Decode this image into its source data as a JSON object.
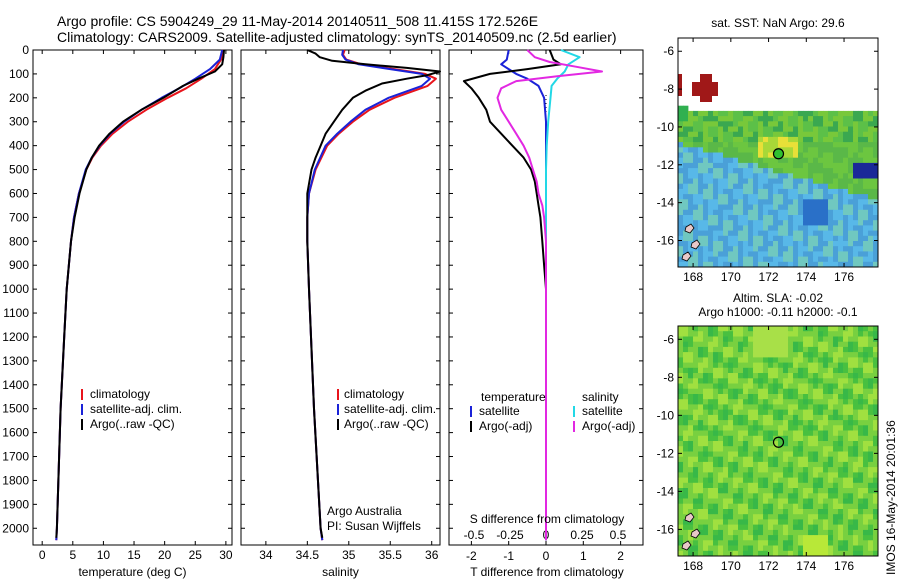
{
  "header": {
    "line1": "Argo profile: CS 5904249_29 11-May-2014 20140511_508 11.415S 172.526E",
    "line2": "Climatology: CARS2009. Satellite-adjusted climatology: synTS_20140509.nc (2.5d earlier)"
  },
  "side_stamp": "IMOS 16-May-2014 20:01:36",
  "colors": {
    "climatology": "#e8141c",
    "satellite_adj": "#1a22d8",
    "argo": "#000000",
    "sal_satellite": "#22d8e6",
    "sal_argo": "#e228e2"
  },
  "chart_data": [
    {
      "id": "temperature",
      "type": "line",
      "xlabel": "temperature (deg C)",
      "ylabel": "",
      "xlim": [
        -1.5,
        31
      ],
      "xticks": [
        0,
        5,
        10,
        15,
        20,
        25,
        30
      ],
      "ylim": [
        2070,
        0
      ],
      "yticks": [
        0,
        100,
        200,
        300,
        400,
        500,
        600,
        700,
        800,
        900,
        1000,
        1100,
        1200,
        1300,
        1400,
        1500,
        1600,
        1700,
        1800,
        1900,
        2000
      ],
      "legend": [
        "climatology",
        "satellite-adj. clim.",
        "Argo(..raw -QC)"
      ],
      "series": [
        {
          "name": "climatology",
          "color": "#e8141c",
          "depth": [
            0,
            40,
            80,
            120,
            160,
            200,
            250,
            300,
            350,
            400,
            450,
            500,
            600,
            700,
            800,
            1000,
            1200,
            1500,
            2000,
            2050
          ],
          "values": [
            29.6,
            29.2,
            28.2,
            26.0,
            23.5,
            20.5,
            17.0,
            14.0,
            11.5,
            9.6,
            8.2,
            7.2,
            6.0,
            5.2,
            4.7,
            4.0,
            3.6,
            3.0,
            2.4,
            2.3
          ]
        },
        {
          "name": "satellite-adj. clim.",
          "color": "#1a22d8",
          "depth": [
            0,
            40,
            80,
            120,
            160,
            200,
            250,
            300,
            350,
            400,
            450,
            500,
            600,
            700,
            800,
            1000,
            1200,
            1500,
            2000,
            2050
          ],
          "values": [
            29.4,
            29.0,
            27.4,
            25.0,
            22.4,
            19.5,
            16.2,
            13.4,
            11.1,
            9.4,
            8.1,
            7.1,
            6.0,
            5.2,
            4.7,
            4.0,
            3.6,
            3.0,
            2.4,
            2.3
          ]
        },
        {
          "name": "Argo(..raw -QC)",
          "color": "#000000",
          "depth": [
            0,
            30,
            60,
            90,
            120,
            150,
            200,
            250,
            300,
            350,
            400,
            450,
            500,
            600,
            700,
            800,
            1000,
            1200,
            1500,
            2000,
            2040
          ],
          "values": [
            29.7,
            29.6,
            29.4,
            28.2,
            25.5,
            23.0,
            19.8,
            16.2,
            13.2,
            11.0,
            9.3,
            8.1,
            7.2,
            6.1,
            5.3,
            4.7,
            4.0,
            3.6,
            3.0,
            2.4,
            2.3
          ]
        }
      ]
    },
    {
      "id": "salinity",
      "type": "line",
      "xlabel": "salinity",
      "ylabel": "",
      "xlim": [
        33.7,
        36.1
      ],
      "xticks": [
        34,
        34.5,
        35,
        35.5,
        36
      ],
      "ylim": [
        2070,
        0
      ],
      "legend": [
        "climatology",
        "satellite-adj. clim.",
        "Argo(..raw -QC)"
      ],
      "annotation": [
        "Argo Australia",
        "PI: Susan Wijffels"
      ],
      "series": [
        {
          "name": "climatology",
          "color": "#e8141c",
          "depth": [
            0,
            20,
            40,
            60,
            80,
            100,
            120,
            150,
            200,
            250,
            300,
            350,
            400,
            500,
            600,
            700,
            800,
            1000,
            1500,
            2000,
            2050
          ],
          "values": [
            34.95,
            34.93,
            34.97,
            35.15,
            35.55,
            35.92,
            36.05,
            35.95,
            35.55,
            35.25,
            35.05,
            34.88,
            34.74,
            34.6,
            34.52,
            34.5,
            34.5,
            34.52,
            34.58,
            34.66,
            34.68
          ]
        },
        {
          "name": "satellite-adj. clim.",
          "color": "#1a22d8",
          "depth": [
            0,
            20,
            40,
            60,
            80,
            100,
            120,
            150,
            200,
            250,
            300,
            350,
            400,
            500,
            600,
            700,
            800,
            1000,
            1500,
            2000,
            2050
          ],
          "values": [
            34.93,
            34.92,
            34.96,
            35.12,
            35.5,
            35.88,
            35.98,
            35.88,
            35.48,
            35.2,
            35.02,
            34.86,
            34.72,
            34.59,
            34.52,
            34.5,
            34.5,
            34.52,
            34.58,
            34.66,
            34.68
          ]
        },
        {
          "name": "Argo(..raw -QC)",
          "color": "#000000",
          "depth": [
            0,
            15,
            30,
            45,
            60,
            75,
            90,
            105,
            120,
            140,
            170,
            200,
            250,
            300,
            350,
            400,
            450,
            500,
            600,
            700,
            800,
            1000,
            1500,
            2000,
            2040
          ],
          "values": [
            34.5,
            34.6,
            34.65,
            34.8,
            35.2,
            35.7,
            36.1,
            35.95,
            35.7,
            35.4,
            35.2,
            35.05,
            34.92,
            34.82,
            34.72,
            34.66,
            34.6,
            34.55,
            34.5,
            34.5,
            34.5,
            34.52,
            34.58,
            34.66,
            34.68
          ]
        }
      ]
    },
    {
      "id": "difference",
      "type": "line",
      "xlabel": "T difference from climatology",
      "xlabel_top": "S difference from climatology",
      "xlim": [
        -2.6,
        2.6
      ],
      "xticks": [
        -2,
        -1,
        0,
        1,
        2
      ],
      "sticks_values": [
        -0.5,
        -0.25,
        0,
        0.25,
        0.5
      ],
      "sticks_labels": [
        "-0.5",
        "-0.25",
        "0",
        "0.25",
        "0.5"
      ],
      "ylim": [
        2070,
        0
      ],
      "legend_titles": [
        "temperature",
        "salinity"
      ],
      "legend": [
        "satellite",
        "Argo(-adj)",
        "satellite",
        "Argo(-adj)"
      ],
      "series": [
        {
          "name": "temperature satellite",
          "color": "#1a22d8",
          "depth": [
            0,
            40,
            60,
            80,
            100,
            120,
            150,
            200,
            300,
            500,
            1000,
            2000,
            2050
          ],
          "values": [
            -1.0,
            -1.05,
            -1.2,
            -1.0,
            -0.8,
            -0.5,
            -0.2,
            -0.05,
            0,
            0,
            0,
            0,
            0
          ]
        },
        {
          "name": "temperature Argo(-adj)",
          "color": "#000000",
          "depth": [
            0,
            40,
            60,
            80,
            100,
            130,
            160,
            200,
            250,
            300,
            350,
            400,
            450,
            500,
            550,
            600,
            650,
            700,
            800,
            900,
            1000,
            1500,
            2000,
            2050
          ],
          "values": [
            0.1,
            0.2,
            0.4,
            -0.5,
            -1.5,
            -2.2,
            -2.0,
            -1.8,
            -1.6,
            -1.5,
            -1.2,
            -0.9,
            -0.6,
            -0.4,
            -0.3,
            -0.25,
            -0.2,
            -0.15,
            -0.1,
            -0.05,
            0,
            0,
            0,
            0
          ]
        },
        {
          "name": "salinity satellite",
          "color": "#22d8e6",
          "depth": [
            0,
            30,
            60,
            90,
            120,
            150,
            200,
            300,
            400,
            500,
            700,
            1000,
            2000,
            2050
          ],
          "values": [
            0.4,
            0.9,
            0.6,
            0.5,
            0.3,
            0.15,
            0.12,
            0.06,
            0.02,
            0,
            0,
            0,
            0,
            0
          ]
        },
        {
          "name": "salinity Argo(-adj)",
          "color": "#e228e2",
          "depth": [
            0,
            30,
            50,
            70,
            90,
            110,
            130,
            160,
            200,
            250,
            300,
            350,
            400,
            450,
            500,
            550,
            600,
            650,
            700,
            800,
            1000,
            2000,
            2050
          ],
          "values": [
            -0.5,
            -0.3,
            0.1,
            0.8,
            1.5,
            0.3,
            -0.8,
            -1.2,
            -1.3,
            -1.2,
            -1.0,
            -0.8,
            -0.6,
            -0.45,
            -0.35,
            -0.25,
            -0.2,
            -0.1,
            -0.05,
            0,
            0,
            0,
            0
          ]
        }
      ]
    },
    {
      "id": "sst_map",
      "type": "heatmap",
      "title": "sat. SST: NaN Argo: 29.6",
      "xlim": [
        167.2,
        177.8
      ],
      "xticks": [
        168,
        170,
        172,
        174,
        176
      ],
      "ylim": [
        -17.4,
        -5.3
      ],
      "yticks": [
        -6,
        -8,
        -10,
        -12,
        -14,
        -16
      ],
      "marker": {
        "lon": 172.526,
        "lat": -11.415
      }
    },
    {
      "id": "sla_map",
      "type": "heatmap",
      "title": "Altim. SLA: -0.02",
      "subtitle": "Argo h1000: -0.11 h2000: -0.1",
      "xlim": [
        167.2,
        177.8
      ],
      "xticks": [
        168,
        170,
        172,
        174,
        176
      ],
      "ylim": [
        -17.4,
        -5.3
      ],
      "yticks": [
        -6,
        -8,
        -10,
        -12,
        -14,
        -16
      ],
      "marker": {
        "lon": 172.526,
        "lat": -11.415
      }
    }
  ]
}
